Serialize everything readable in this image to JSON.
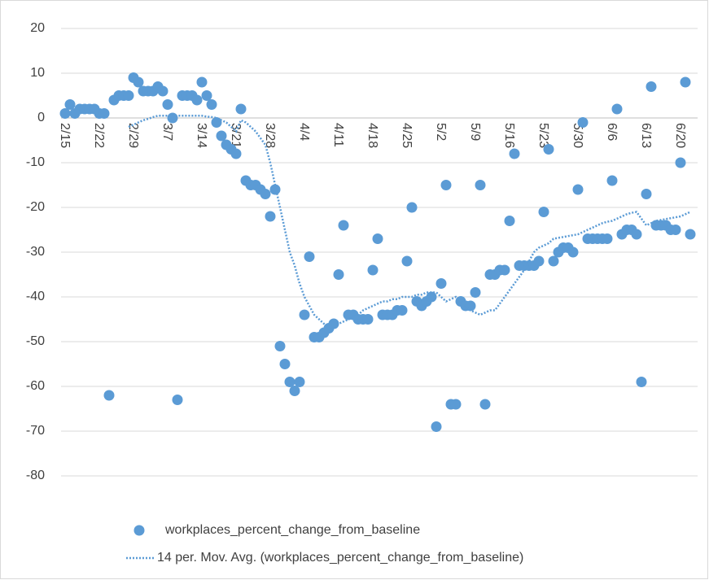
{
  "chart_data": {
    "type": "line",
    "categories": [
      "2/15",
      null,
      null,
      null,
      null,
      null,
      null,
      "2/22",
      null,
      null,
      null,
      null,
      null,
      null,
      "2/29",
      null,
      null,
      null,
      null,
      null,
      null,
      "3/7",
      null,
      null,
      null,
      null,
      null,
      null,
      "3/14",
      null,
      null,
      null,
      null,
      null,
      null,
      "3/21",
      null,
      null,
      null,
      null,
      null,
      null,
      "3/28",
      null,
      null,
      null,
      null,
      null,
      null,
      "4/4",
      null,
      null,
      null,
      null,
      null,
      null,
      "4/11",
      null,
      null,
      null,
      null,
      null,
      null,
      "4/18",
      null,
      null,
      null,
      null,
      null,
      null,
      "4/25",
      null,
      null,
      null,
      null,
      null,
      null,
      "5/2",
      null,
      null,
      null,
      null,
      null,
      null,
      "5/9",
      null,
      null,
      null,
      null,
      null,
      null,
      "5/16",
      null,
      null,
      null,
      null,
      null,
      null,
      "5/23",
      null,
      null,
      null,
      null,
      null,
      null,
      "5/30",
      null,
      null,
      null,
      null,
      null,
      null,
      "6/6",
      null,
      null,
      null,
      null,
      null,
      null,
      "6/13",
      null,
      null,
      null,
      null,
      null,
      null,
      "6/20",
      null,
      null
    ],
    "series": [
      {
        "name": "workplaces_percent_change_from_baseline",
        "color": "#5b9bd5",
        "marker": "circle",
        "line_style": "none",
        "values": [
          1,
          3,
          1,
          2,
          2,
          2,
          2,
          1,
          1,
          -62,
          4,
          5,
          5,
          5,
          9,
          8,
          6,
          6,
          6,
          7,
          6,
          3,
          0,
          -63,
          5,
          5,
          5,
          4,
          8,
          5,
          3,
          -1,
          -4,
          -6,
          -7,
          -8,
          2,
          -14,
          -15,
          -15,
          -16,
          -17,
          -22,
          -16,
          -51,
          -55,
          -59,
          -61,
          -59,
          -44,
          -31,
          -49,
          -49,
          -48,
          -47,
          -46,
          -35,
          -24,
          -44,
          -44,
          -45,
          -45,
          -45,
          -34,
          -27,
          -44,
          -44,
          -44,
          -43,
          -43,
          -32,
          -20,
          -41,
          -42,
          -41,
          -40,
          -69,
          -37,
          -15,
          -64,
          -64,
          -41,
          -42,
          -42,
          -39,
          -15,
          -64,
          -35,
          -35,
          -34,
          -34,
          -23,
          -8,
          -33,
          -33,
          -33,
          -33,
          -32,
          -21,
          -7,
          -32,
          -30,
          -29,
          -29,
          -30,
          -16,
          -1,
          -27,
          -27,
          -27,
          -27,
          -27,
          -14,
          2,
          -26,
          -25,
          -25,
          -26,
          -59,
          -17,
          7,
          -24,
          -24,
          -24,
          -25,
          -25,
          -10,
          8,
          -26
        ]
      },
      {
        "name": "14 per. Mov. Avg. (workplaces_percent_change_from_baseline)",
        "color": "#5b9bd5",
        "marker": "none",
        "line_style": "dotted",
        "values": [
          null,
          null,
          null,
          null,
          null,
          null,
          null,
          null,
          null,
          null,
          null,
          null,
          null,
          -2,
          -1.5,
          -1,
          -0.5,
          -0.2,
          0.2,
          0.5,
          0.5,
          0.5,
          0.5,
          0.5,
          0.5,
          0.5,
          0.5,
          0.5,
          0.5,
          0.3,
          0.2,
          0,
          -0.5,
          -1,
          -2,
          -3,
          -0.5,
          -1,
          -2,
          -3,
          -4.5,
          -6,
          -10,
          -15,
          -20,
          -25,
          -30,
          -33,
          -37,
          -40,
          -42,
          -44,
          -45,
          -46,
          -47,
          -46.5,
          -46,
          -45.5,
          -45,
          -44.5,
          -44,
          -43,
          -42.5,
          -42,
          -41.5,
          -41,
          -41,
          -40.5,
          -40.5,
          -40,
          -40,
          -40,
          -39.5,
          -39.5,
          -39,
          -39,
          -39,
          -40,
          -41,
          -40.5,
          -40,
          -41,
          -42,
          -43,
          -43.5,
          -44,
          -43.5,
          -43,
          -43,
          -41.5,
          -40,
          -38.5,
          -37,
          -35.5,
          -34,
          -32,
          -30,
          -29,
          -28.5,
          -28,
          -27,
          -26.8,
          -26.6,
          -26.4,
          -26.2,
          -26,
          -25.5,
          -25,
          -24.5,
          -24,
          -23.5,
          -23.2,
          -23,
          -22.5,
          -22,
          -21.5,
          -21.2,
          -21,
          -22.5,
          -24,
          -23.5,
          -23,
          -22.8,
          -22.6,
          -22.4,
          -22.2,
          -22,
          -21.5,
          -21
        ]
      }
    ],
    "ylim": [
      -80,
      20
    ],
    "yticks": [
      -80,
      -70,
      -60,
      -50,
      -40,
      -30,
      -20,
      -10,
      0,
      10,
      20
    ],
    "grid": true,
    "legend": "bottom"
  }
}
